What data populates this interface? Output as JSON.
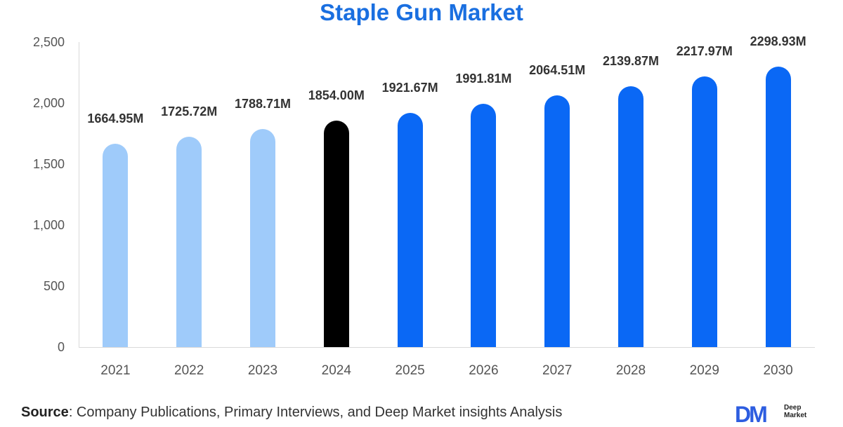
{
  "title": "Staple Gun Market",
  "chart_data": {
    "type": "bar",
    "title": "Staple Gun Market",
    "xlabel": "",
    "ylabel": "",
    "unit": "M",
    "ylim": [
      0,
      2500
    ],
    "yticks": [
      "0",
      "500",
      "1,000",
      "1,500",
      "2,000",
      "2,500"
    ],
    "grid": false,
    "categories": [
      "2021",
      "2022",
      "2023",
      "2024",
      "2025",
      "2026",
      "2027",
      "2028",
      "2029",
      "2030"
    ],
    "values": [
      1664.95,
      1725.72,
      1788.71,
      1854.0,
      1921.67,
      1991.81,
      2064.51,
      2139.87,
      2217.97,
      2298.93
    ],
    "labels": [
      "1664.95M",
      "1725.72M",
      "1788.71M",
      "1854.00M",
      "1921.67M",
      "1991.81M",
      "2064.51M",
      "2139.87M",
      "2217.97M",
      "2298.93M"
    ],
    "colors": [
      "#9fcbfa",
      "#9fcbfa",
      "#9fcbfa",
      "#000000",
      "#0a68f5",
      "#0a68f5",
      "#0a68f5",
      "#0a68f5",
      "#0a68f5",
      "#0a68f5"
    ],
    "legend": null
  },
  "colors": {
    "title": "#1a6fe0",
    "historical": "#9fcbfa",
    "base_year": "#000000",
    "forecast": "#0a68f5"
  },
  "footer": {
    "source_label": "Source",
    "source_text": ": Company Publications, Primary Interviews, and Deep Market insights Analysis",
    "logo_mark": "DM",
    "logo_line1": "Deep",
    "logo_line2": "Market"
  }
}
